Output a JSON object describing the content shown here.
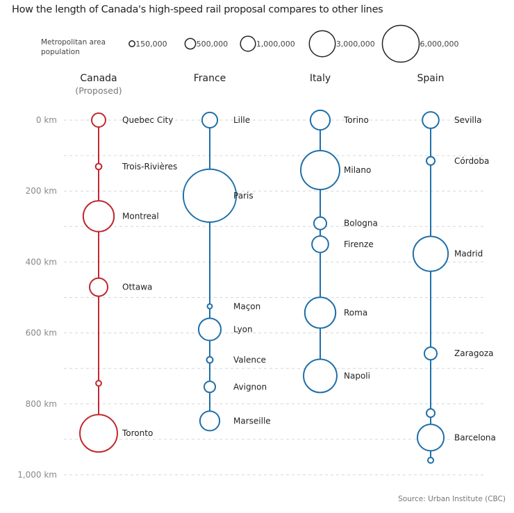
{
  "title": "How the length of Canada's high-speed rail proposal compares to other lines",
  "legend": {
    "label": "Metropolitan area population",
    "sizes": [
      {
        "label": "150,000",
        "value": 150000
      },
      {
        "label": "500,000",
        "value": 500000
      },
      {
        "label": "1,000,000",
        "value": 1000000
      },
      {
        "label": "3,000,000",
        "value": 3000000
      },
      {
        "label": "6,000,000",
        "value": 6000000
      }
    ]
  },
  "source": "Source: Urban Institute (CBC)",
  "chart_data": {
    "type": "scatter",
    "y_axis": {
      "unit": "km",
      "range": [
        0,
        1000
      ],
      "ticks": [
        0,
        200,
        400,
        600,
        800,
        1000
      ],
      "tick_labels": [
        "0 km",
        "200 km",
        "400 km",
        "600 km",
        "800 km",
        "1,000 km"
      ],
      "grid_step": 100,
      "grid": true
    },
    "size_encoding": "Metropolitan area population",
    "series": [
      {
        "name": "Canada",
        "subtitle": "(Proposed)",
        "color": "#c1272d",
        "stations": [
          {
            "label": "Quebec City",
            "km": 0,
            "pop": 850000
          },
          {
            "label": "Trois-Rivières",
            "km": 131,
            "pop": 160000
          },
          {
            "label": "Montreal",
            "km": 271,
            "pop": 4200000
          },
          {
            "label": "Ottawa",
            "km": 471,
            "pop": 1450000
          },
          {
            "label": "",
            "km": 742,
            "pop": 130000
          },
          {
            "label": "Toronto",
            "km": 883,
            "pop": 6200000
          }
        ]
      },
      {
        "name": "France",
        "color": "#1f6fa8",
        "stations": [
          {
            "label": "Lille",
            "km": 0,
            "pop": 1050000
          },
          {
            "label": "Paris",
            "km": 213,
            "pop": 12400000
          },
          {
            "label": "Maçon",
            "km": 525,
            "pop": 100000
          },
          {
            "label": "Lyon",
            "km": 590,
            "pop": 2200000
          },
          {
            "label": "Valence",
            "km": 676,
            "pop": 170000
          },
          {
            "label": "Avignon",
            "km": 752,
            "pop": 550000
          },
          {
            "label": "Marseille",
            "km": 848,
            "pop": 1700000
          }
        ]
      },
      {
        "name": "Italy",
        "color": "#1f6fa8",
        "stations": [
          {
            "label": "Torino",
            "km": 0,
            "pop": 1700000
          },
          {
            "label": "Milano",
            "km": 141,
            "pop": 6700000
          },
          {
            "label": "Bologna",
            "km": 291,
            "pop": 700000
          },
          {
            "label": "Firenze",
            "km": 350,
            "pop": 1200000
          },
          {
            "label": "Roma",
            "km": 543,
            "pop": 4200000
          },
          {
            "label": "Napoli",
            "km": 721,
            "pop": 4900000
          }
        ]
      },
      {
        "name": "Spain",
        "color": "#1f6fa8",
        "stations": [
          {
            "label": "Sevilla",
            "km": 0,
            "pop": 1200000
          },
          {
            "label": "Córdoba",
            "km": 115,
            "pop": 310000
          },
          {
            "label": "Madrid",
            "km": 377,
            "pop": 5400000
          },
          {
            "label": "Zaragoza",
            "km": 658,
            "pop": 700000
          },
          {
            "label": "",
            "km": 826,
            "pop": 310000
          },
          {
            "label": "Barcelona",
            "km": 895,
            "pop": 3100000
          },
          {
            "label": "",
            "km": 959,
            "pop": 140000
          }
        ]
      }
    ]
  }
}
